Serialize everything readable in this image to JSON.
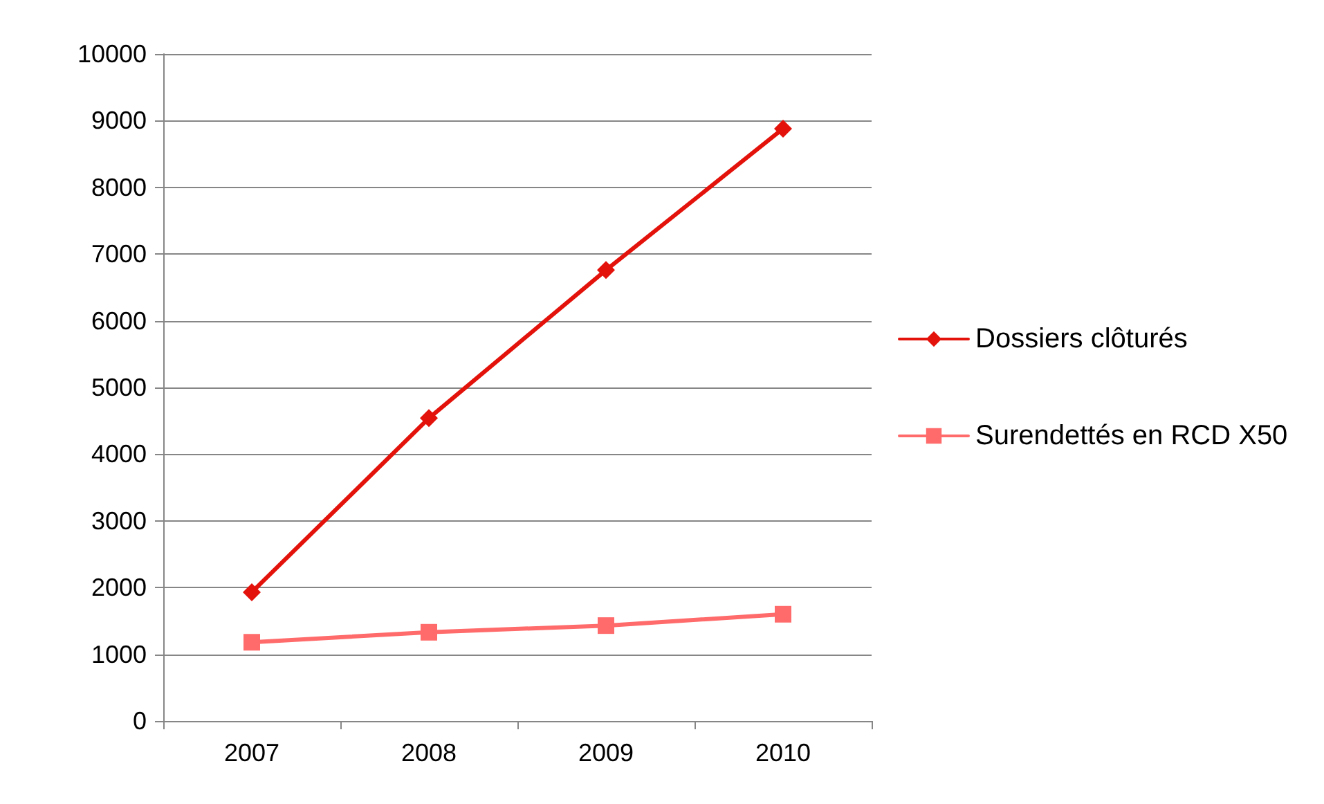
{
  "chart_data": {
    "type": "line",
    "categories": [
      "2007",
      "2008",
      "2009",
      "2010"
    ],
    "series": [
      {
        "name": "Dossiers clôturés",
        "color": "#e3120b",
        "marker": "diamond",
        "values": [
          1930,
          4540,
          6760,
          8880
        ]
      },
      {
        "name": "Surendettés en RCD X50",
        "color": "#ff6b6b",
        "marker": "square",
        "values": [
          1180,
          1330,
          1430,
          1600
        ]
      }
    ],
    "ylim": [
      0,
      10000
    ],
    "yticks": [
      0,
      1000,
      2000,
      3000,
      4000,
      5000,
      6000,
      7000,
      8000,
      9000,
      10000
    ],
    "grid": "y",
    "legend": "right",
    "line_style": "solid"
  }
}
